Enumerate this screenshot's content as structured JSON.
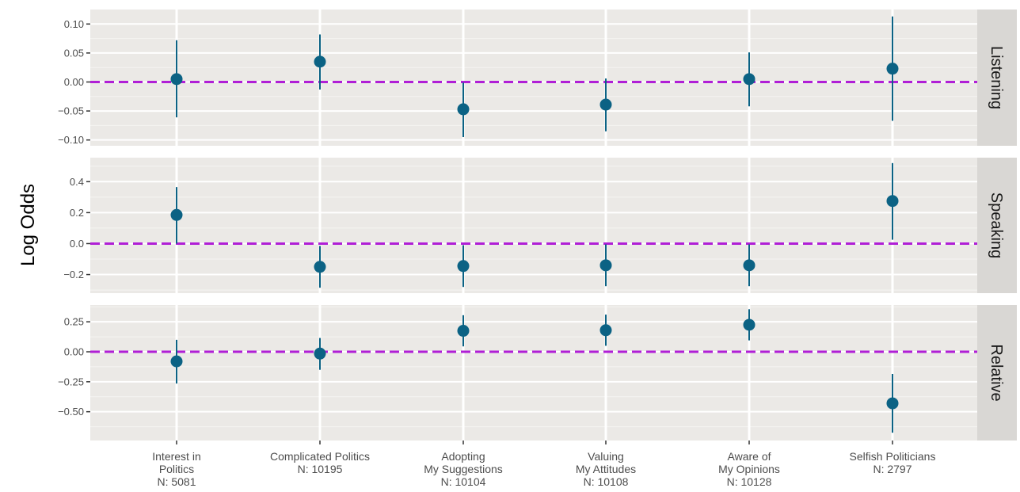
{
  "chart_data": {
    "type": "scatter",
    "subtype": "point-range, faceted",
    "ylabel": "Log Odds",
    "reference_line": {
      "y": 0,
      "color": "#b01fd6",
      "style": "dashed"
    },
    "colors": {
      "point": "#0b6284",
      "panel_bg": "#ebe9e6",
      "strip_bg": "#d9d7d4",
      "grid_major": "#ffffff",
      "grid_minor": "#f5f4f2"
    },
    "categories": [
      {
        "lines": [
          "Interest in",
          "Politics",
          "N:  5081"
        ]
      },
      {
        "lines": [
          "Complicated Politics",
          "N:  10195"
        ]
      },
      {
        "lines": [
          "Adopting",
          "My Suggestions",
          "N:  10104"
        ]
      },
      {
        "lines": [
          "Valuing",
          "My Attitudes",
          "N:  10108"
        ]
      },
      {
        "lines": [
          "Aware of",
          "My Opinions",
          "N:  10128"
        ]
      },
      {
        "lines": [
          "Selfish Politicians",
          "N:  2797"
        ]
      }
    ],
    "facets": [
      {
        "strip": "Listening",
        "ylim": [
          -0.11,
          0.125
        ],
        "yticks": [
          0.1,
          0.05,
          0.0,
          -0.05,
          -0.1
        ],
        "ytick_labels": [
          "0.10",
          "0.05",
          "0.00",
          "−0.05",
          "−0.10"
        ],
        "estimates": [
          0.005,
          0.035,
          -0.047,
          -0.039,
          0.005,
          0.023
        ],
        "lower": [
          -0.061,
          -0.013,
          -0.095,
          -0.085,
          -0.042,
          -0.067
        ],
        "upper": [
          0.072,
          0.082,
          -0.001,
          0.006,
          0.051,
          0.113
        ]
      },
      {
        "strip": "Speaking",
        "ylim": [
          -0.32,
          0.555
        ],
        "yticks": [
          0.4,
          0.2,
          0.0,
          -0.2
        ],
        "ytick_labels": [
          "0.4",
          "0.2",
          "0.0",
          "−0.2"
        ],
        "estimates": [
          0.185,
          -0.15,
          -0.145,
          -0.14,
          -0.14,
          0.275
        ],
        "lower": [
          0.0,
          -0.285,
          -0.28,
          -0.275,
          -0.275,
          0.025
        ],
        "upper": [
          0.365,
          -0.015,
          -0.01,
          -0.005,
          -0.005,
          0.52
        ]
      },
      {
        "strip": "Relative",
        "ylim": [
          -0.74,
          0.39
        ],
        "yticks": [
          0.25,
          0.0,
          -0.25,
          -0.5
        ],
        "ytick_labels": [
          "0.25",
          "0.00",
          "−0.25",
          "−0.50"
        ],
        "estimates": [
          -0.08,
          -0.015,
          0.175,
          0.18,
          0.225,
          -0.43
        ],
        "lower": [
          -0.265,
          -0.15,
          0.045,
          0.05,
          0.095,
          -0.675
        ],
        "upper": [
          0.1,
          0.115,
          0.305,
          0.31,
          0.355,
          -0.185
        ]
      }
    ]
  }
}
